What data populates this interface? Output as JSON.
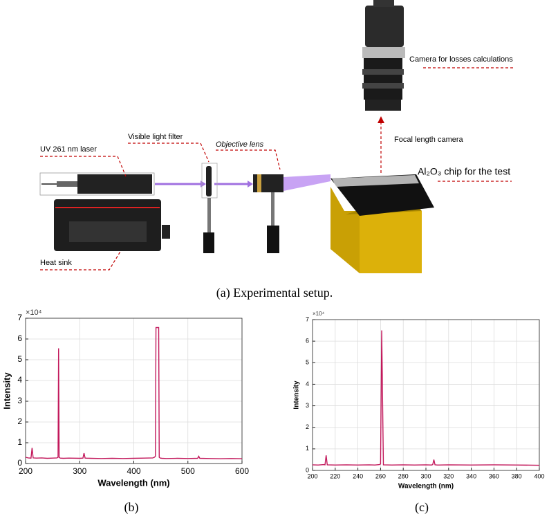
{
  "diagram": {
    "laser_label": "UV 261 nm laser",
    "filter_label": "Visible light filter",
    "lens_label": "Objective lens",
    "camera_label": "Camera for losses calculations",
    "focal_label": "Focal length camera",
    "chip_label": "Al₂O₃ chip for the test",
    "heatsink_label": "Heat sink",
    "caption": "(a) Experimental setup."
  },
  "chart_data": [
    {
      "type": "line",
      "caption": "(b)",
      "xlabel": "Wavelength (nm)",
      "ylabel": "Intensity",
      "multiplier": "×10⁴",
      "xlim": [
        200,
        600
      ],
      "xticks": [
        200,
        300,
        400,
        500,
        600
      ],
      "ylim": [
        0,
        70000
      ],
      "yticks": [
        {
          "value": 0,
          "label": "0"
        },
        {
          "value": 10000,
          "label": "1"
        },
        {
          "value": 20000,
          "label": "2"
        },
        {
          "value": 30000,
          "label": "3"
        },
        {
          "value": 40000,
          "label": "4"
        },
        {
          "value": 50000,
          "label": "5"
        },
        {
          "value": 60000,
          "label": "6"
        },
        {
          "value": 70000,
          "label": "7"
        }
      ],
      "grid": true,
      "x": [
        200,
        205,
        210,
        212,
        214,
        220,
        230,
        240,
        250,
        258,
        260,
        261,
        262,
        264,
        270,
        280,
        300,
        306,
        308,
        310,
        320,
        340,
        360,
        380,
        400,
        420,
        435,
        438,
        440,
        441,
        446,
        447,
        449,
        452,
        460,
        480,
        500,
        518,
        520,
        522,
        540,
        560,
        580,
        600
      ],
      "series": [
        {
          "color": "#c2185b",
          "values": [
            3000,
            2700,
            2600,
            7500,
            2700,
            2600,
            2700,
            2500,
            2600,
            2700,
            3000,
            55500,
            3000,
            2600,
            2500,
            2600,
            2500,
            2600,
            5000,
            2600,
            2500,
            2400,
            2500,
            2400,
            2500,
            2600,
            2700,
            3000,
            3500,
            65500,
            65500,
            3000,
            2600,
            2500,
            2400,
            2500,
            2400,
            2500,
            3500,
            2500,
            2400,
            2300,
            2400,
            2300
          ]
        }
      ]
    },
    {
      "type": "line",
      "caption": "(c)",
      "xlabel": "Wavelength (nm)",
      "ylabel": "Intensity",
      "multiplier": "×10⁴",
      "xlim": [
        200,
        400
      ],
      "xticks": [
        200,
        220,
        240,
        260,
        280,
        300,
        320,
        340,
        360,
        380,
        400
      ],
      "ylim": [
        0,
        70000
      ],
      "yticks": [
        {
          "value": 0,
          "label": "0"
        },
        {
          "value": 10000,
          "label": "1"
        },
        {
          "value": 20000,
          "label": "2"
        },
        {
          "value": 30000,
          "label": "3"
        },
        {
          "value": 40000,
          "label": "4"
        },
        {
          "value": 50000,
          "label": "5"
        },
        {
          "value": 60000,
          "label": "6"
        },
        {
          "value": 70000,
          "label": "7"
        }
      ],
      "grid": true,
      "x": [
        200,
        205,
        210,
        211,
        212,
        213,
        220,
        230,
        240,
        250,
        255,
        259,
        260,
        261,
        261.5,
        262,
        262.5,
        270,
        280,
        290,
        300,
        305,
        306,
        307,
        308,
        310,
        320,
        340,
        360,
        380,
        400
      ],
      "series": [
        {
          "color": "#c2185b",
          "values": [
            2600,
            2500,
            2700,
            2600,
            7000,
            2600,
            2500,
            2600,
            2500,
            2600,
            2500,
            2700,
            3000,
            65000,
            45000,
            23000,
            2600,
            2500,
            2600,
            2500,
            2600,
            2500,
            2700,
            5000,
            2600,
            2500,
            2600,
            2500,
            2600,
            2500,
            2400
          ]
        }
      ]
    }
  ]
}
